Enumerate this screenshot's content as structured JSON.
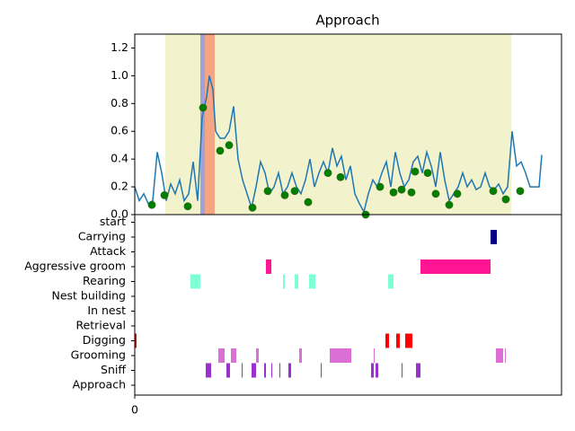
{
  "chart_data": [
    {
      "type": "line",
      "title": "Approach",
      "xlim": [
        0,
        475
      ],
      "ylim": [
        0,
        1.3
      ],
      "yticks": [
        {
          "value": 0,
          "label": "0.0"
        },
        {
          "value": 0.2,
          "label": "0.2"
        },
        {
          "value": 0.4,
          "label": "0.4"
        },
        {
          "value": 0.6,
          "label": "0.6"
        },
        {
          "value": 0.8,
          "label": "0.8"
        },
        {
          "value": 1.0,
          "label": "1.0"
        },
        {
          "value": 1.2,
          "label": "1.2"
        }
      ],
      "spans": [
        {
          "x": [
            34,
            419
          ],
          "color": "#f2f2cc"
        },
        {
          "x": [
            73,
            78
          ],
          "color": "#a0a0dc"
        },
        {
          "x": [
            78,
            89
          ],
          "color": "#f4a582"
        }
      ],
      "x": [
        0,
        5,
        10,
        15,
        20,
        25,
        30,
        35,
        40,
        45,
        50,
        55,
        60,
        65,
        70,
        75,
        80,
        83,
        87,
        90,
        95,
        100,
        105,
        110,
        115,
        120,
        125,
        130,
        135,
        140,
        145,
        150,
        155,
        160,
        165,
        170,
        175,
        180,
        185,
        190,
        195,
        200,
        205,
        210,
        215,
        220,
        225,
        230,
        235,
        240,
        245,
        250,
        255,
        260,
        265,
        270,
        275,
        280,
        285,
        290,
        295,
        300,
        305,
        310,
        315,
        320,
        325,
        330,
        335,
        340,
        345,
        350,
        355,
        360,
        365,
        370,
        375,
        380,
        385,
        390,
        395,
        400,
        405,
        410,
        415,
        420,
        425,
        430,
        435,
        440,
        445,
        450,
        453
      ],
      "series": [
        {
          "color": "#1f77b4",
          "values": [
            0.2,
            0.1,
            0.15,
            0.08,
            0.1,
            0.45,
            0.3,
            0.1,
            0.22,
            0.15,
            0.25,
            0.1,
            0.15,
            0.38,
            0.1,
            0.7,
            0.85,
            1.0,
            0.9,
            0.6,
            0.55,
            0.55,
            0.6,
            0.78,
            0.4,
            0.25,
            0.15,
            0.05,
            0.2,
            0.38,
            0.3,
            0.15,
            0.2,
            0.3,
            0.15,
            0.2,
            0.3,
            0.2,
            0.15,
            0.25,
            0.4,
            0.2,
            0.3,
            0.38,
            0.3,
            0.48,
            0.35,
            0.42,
            0.25,
            0.35,
            0.15,
            0.08,
            0.02,
            0.15,
            0.25,
            0.2,
            0.3,
            0.38,
            0.2,
            0.45,
            0.3,
            0.2,
            0.25,
            0.38,
            0.42,
            0.3,
            0.45,
            0.35,
            0.2,
            0.45,
            0.25,
            0.1,
            0.15,
            0.2,
            0.3,
            0.2,
            0.25,
            0.18,
            0.2,
            0.3,
            0.2,
            0.18,
            0.22,
            0.15,
            0.2,
            0.6,
            0.35,
            0.38,
            0.3,
            0.2,
            0.2,
            0.2,
            0.43
          ]
        }
      ],
      "points": {
        "color": "#008000",
        "x": [
          19,
          33,
          59,
          76,
          95,
          105,
          131,
          148,
          167,
          178,
          193,
          215,
          229,
          257,
          273,
          288,
          297,
          308,
          312,
          326,
          335,
          350,
          359,
          399,
          413,
          429
        ],
        "y": [
          0.07,
          0.14,
          0.06,
          0.77,
          0.46,
          0.5,
          0.05,
          0.17,
          0.14,
          0.17,
          0.09,
          0.3,
          0.27,
          0.0,
          0.2,
          0.16,
          0.18,
          0.16,
          0.31,
          0.3,
          0.15,
          0.07,
          0.15,
          0.17,
          0.11,
          0.17
        ]
      }
    },
    {
      "type": "broken_barh",
      "xlim": [
        0,
        475
      ],
      "xticks": [
        0
      ],
      "categories": [
        "Approach",
        "Sniff",
        "Grooming",
        "Digging",
        "Retrieval",
        "In nest",
        "Nest building",
        "Rearing",
        "Aggressive groom",
        "Attack",
        "Carrying",
        "start"
      ],
      "series": [
        {
          "intervals": []
        },
        {
          "color": "#9932cc",
          "intervals": [
            [
              79,
              85
            ],
            [
              102,
              106
            ],
            [
              119,
              120
            ],
            [
              130,
              135
            ],
            [
              144,
              146
            ],
            [
              152,
              153
            ],
            [
              161,
              162
            ],
            [
              171,
              174
            ],
            [
              207,
              208
            ],
            [
              263,
              266
            ],
            [
              268,
              271
            ],
            [
              297,
              298
            ],
            [
              313,
              318
            ]
          ]
        },
        {
          "color": "#da70d6",
          "intervals": [
            [
              93,
              100
            ],
            [
              107,
              113
            ],
            [
              135,
              138
            ],
            [
              183,
              186
            ],
            [
              217,
              241
            ],
            [
              266,
              267
            ],
            [
              402,
              410
            ],
            [
              412,
              413
            ]
          ]
        },
        {
          "color": "#ff0000",
          "intervals": [
            [
              0,
              2
            ],
            [
              279,
              283
            ],
            [
              291,
              295
            ],
            [
              301,
              309
            ]
          ]
        },
        {
          "intervals": []
        },
        {
          "intervals": []
        },
        {
          "intervals": []
        },
        {
          "color": "#7fffd4",
          "intervals": [
            [
              62,
              73
            ],
            [
              165,
              167
            ],
            [
              178,
              182
            ],
            [
              194,
              201
            ],
            [
              282,
              288
            ]
          ]
        },
        {
          "color": "#ff1493",
          "intervals": [
            [
              146,
              152
            ],
            [
              318,
              396
            ]
          ]
        },
        {
          "intervals": []
        },
        {
          "color": "#000080",
          "intervals": [
            [
              396,
              403
            ]
          ]
        },
        {
          "intervals": []
        }
      ]
    }
  ]
}
